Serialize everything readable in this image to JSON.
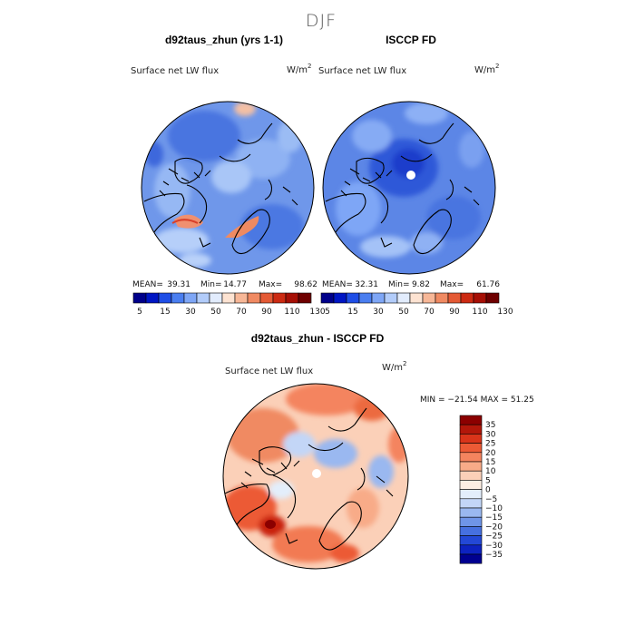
{
  "figure_title": "DJF",
  "colors": {
    "seq_palette": [
      "#00008a",
      "#0016c4",
      "#1f4ee6",
      "#4a7ef0",
      "#7ea6f6",
      "#b2ccfa",
      "#e2ecfd",
      "#fde3d2",
      "#f7b797",
      "#f08a62",
      "#e45a35",
      "#cc2a12",
      "#a60f05",
      "#6e0000"
    ],
    "div_palette_top_to_bottom": [
      "#8b0000",
      "#b2170a",
      "#d9341a",
      "#ec5a35",
      "#f4845e",
      "#f8ab88",
      "#fbd0b8",
      "#fdeee2",
      "#e3eefb",
      "#c3d6f7",
      "#9ab8f0",
      "#6f95e8",
      "#4670e0",
      "#2348d6",
      "#0d22c0",
      "#000090"
    ]
  },
  "chart_data": [
    {
      "type": "heatmap",
      "projection": "north-polar-stereographic",
      "title": "d92taus_zhun (yrs 1-1)",
      "subtitle": "Surface net LW flux",
      "units_base": "W/m",
      "units_exp": "2",
      "stats": {
        "mean_label": "MEAN=",
        "mean": "39.31",
        "min_label": "Min=",
        "min": "14.77",
        "max_label": "Max=",
        "max": "98.62"
      },
      "colorbar": {
        "orientation": "horizontal",
        "tick_labels": [
          "5",
          "15",
          "30",
          "50",
          "70",
          "90",
          "110",
          "130"
        ]
      }
    },
    {
      "type": "heatmap",
      "projection": "north-polar-stereographic",
      "title": "ISCCP FD",
      "subtitle": "Surface net LW flux",
      "units_base": "W/m",
      "units_exp": "2",
      "stats": {
        "mean_label": "MEAN=",
        "mean": "32.31",
        "min_label": "Min=",
        "min": "9.82",
        "max_label": "Max=",
        "max": "61.76"
      },
      "colorbar": {
        "orientation": "horizontal",
        "tick_labels": [
          "5",
          "15",
          "30",
          "50",
          "70",
          "90",
          "110",
          "130"
        ]
      }
    },
    {
      "type": "heatmap",
      "projection": "north-polar-stereographic",
      "title": "d92taus_zhun - ISCCP FD",
      "subtitle": "Surface net LW flux",
      "units_base": "W/m",
      "units_exp": "2",
      "stats_text": "MIN = −21.54 MAX =  51.25",
      "colorbar": {
        "orientation": "vertical",
        "tick_labels": [
          "35",
          "30",
          "25",
          "20",
          "15",
          "10",
          "5",
          "0",
          "−5",
          "−10",
          "−15",
          "−20",
          "−25",
          "−30",
          "−35"
        ]
      }
    }
  ]
}
